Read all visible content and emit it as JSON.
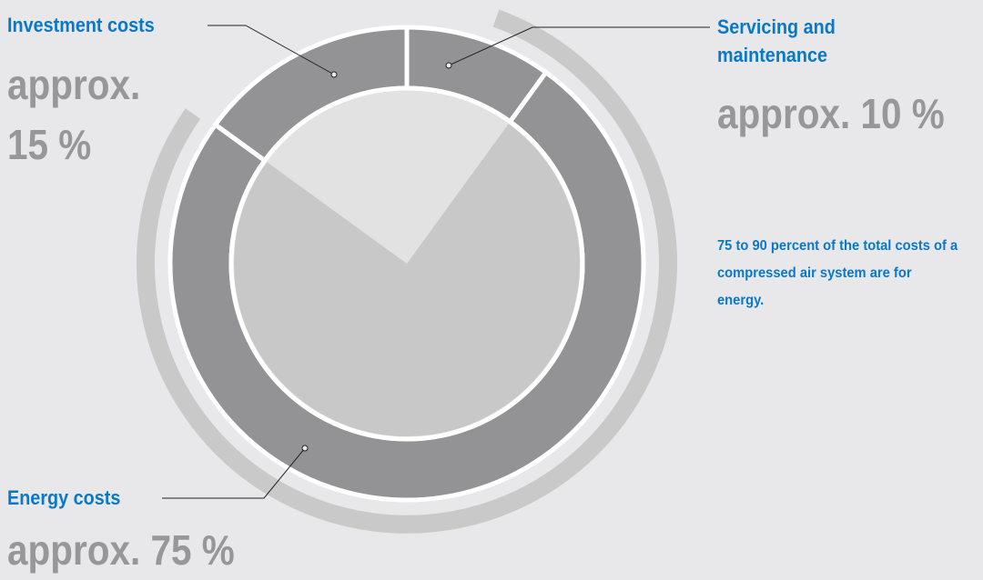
{
  "chart_data": {
    "type": "donut",
    "categories": [
      "Servicing and maintenance",
      "Energy costs",
      "Investment costs"
    ],
    "values": [
      10,
      75,
      15
    ],
    "value_labels": [
      "approx. 10 %",
      "approx. 75 %",
      "approx. 15 %"
    ],
    "ring_color": "#939396",
    "inner_color": "#c8c8c9",
    "inner_background": "#e2e2e3",
    "note": "75 to 90 percent of the total costs of a compressed air system are for energy."
  }
}
